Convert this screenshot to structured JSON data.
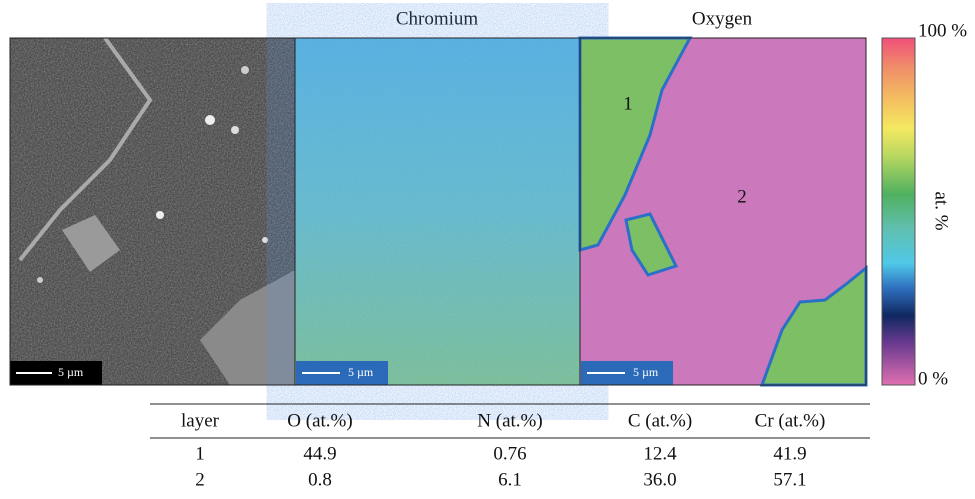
{
  "panels": [
    {
      "scale_bar": "5 µm"
    },
    {
      "title": "Chromium",
      "scale_bar": "5 µm"
    },
    {
      "title": "Oxygen",
      "scale_bar": "5 µm",
      "region_labels": [
        "1",
        "2"
      ]
    }
  ],
  "colorbar": {
    "top_label": "100 %",
    "bottom_label": "0 %",
    "axis_label": "at. %"
  },
  "table": {
    "header": [
      "layer",
      "O (at.%)",
      "N (at.%)",
      "C (at.%)",
      "Cr (at.%)"
    ],
    "rows": [
      [
        "1",
        "44.9",
        "0.76",
        "12.4",
        "41.9"
      ],
      [
        "2",
        "0.8",
        "6.1",
        "36.0",
        "57.1"
      ]
    ]
  }
}
